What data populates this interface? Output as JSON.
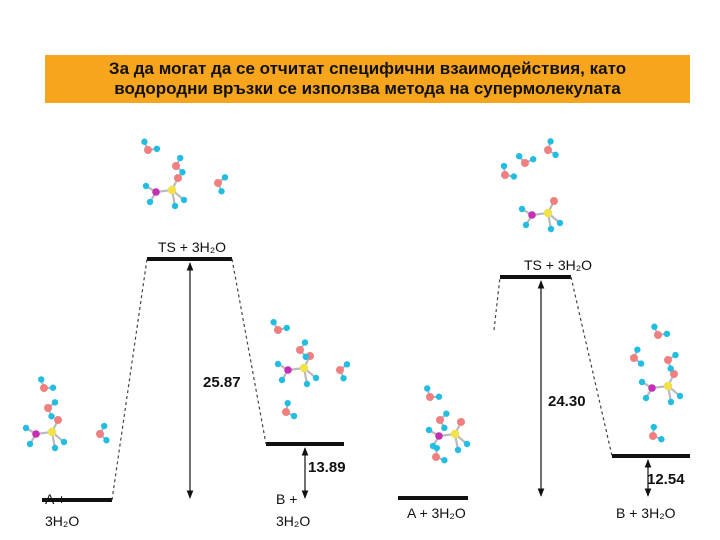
{
  "banner": {
    "line1": "За да могат да се отчитат специфични взаимодействия, като",
    "line2": "водородни връзки се използва метода на супермолекулата"
  },
  "left_diagram": {
    "ts_label": "TS + 3H₂O",
    "barrier_value": "25.87",
    "product_value": "13.89",
    "reactant_label_line1": "A +",
    "reactant_label_line2": "3H₂O",
    "product_label_line1": "B +",
    "product_label_line2": "3H₂O"
  },
  "right_diagram": {
    "ts_label": "TS + 3H₂O",
    "barrier_value": "24.30",
    "product_value": "12.54",
    "reactant_label": "A + 3H₂O",
    "product_label": "B + 3H₂O"
  },
  "colors": {
    "banner": "#f7a51c",
    "oxygen": "#f08080",
    "hydrogen": "#22bde0",
    "sulfur": "#f2e24a",
    "phosphorus": "#c62fb5"
  }
}
